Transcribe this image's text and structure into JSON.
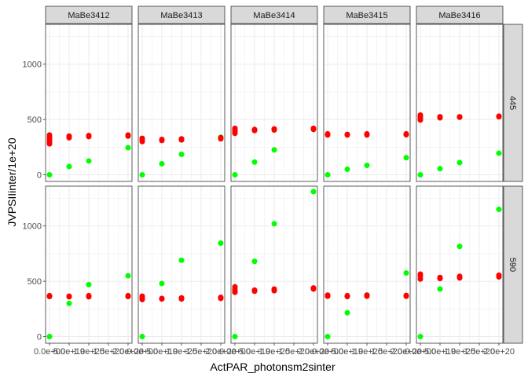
{
  "chart_data": {
    "type": "scatter",
    "layout": "facet_grid",
    "xlabel": "ActPAR_photonsm2sinter",
    "ylabel": "JVPSIIinter/1e+20",
    "col_facets": [
      "MaBe3412",
      "MaBe3413",
      "MaBe3414",
      "MaBe3415",
      "MaBe3416"
    ],
    "row_facets": [
      "445",
      "590"
    ],
    "xlim": [
      -0.1,
      2.1
    ],
    "ylim": [
      -60,
      1360
    ],
    "x_ticks": [
      0,
      0.5,
      1.0,
      1.5,
      2.0
    ],
    "x_tick_labels": [
      "0.0e+00",
      "5.0e+19",
      "1.0e+20",
      "1.5e+20",
      "2.0e+20"
    ],
    "y_ticks": [
      0,
      500,
      1000
    ],
    "y_tick_labels": [
      "0",
      "500",
      "1000"
    ],
    "grid": true,
    "colors": {
      "red": "#ff0000",
      "green": "#00ff00",
      "strip_bg": "#d9d9d9",
      "grid": "#ebebeb",
      "panel_border": "#333333"
    },
    "panels": [
      {
        "col": "MaBe3412",
        "row": "445",
        "red": [
          [
            0.0,
            360
          ],
          [
            0.0,
            340
          ],
          [
            0.0,
            325
          ],
          [
            0.0,
            310
          ],
          [
            0.0,
            295
          ],
          [
            0.0,
            280
          ],
          [
            0.5,
            350
          ],
          [
            0.5,
            335
          ],
          [
            1.0,
            355
          ],
          [
            1.0,
            345
          ],
          [
            2.0,
            360
          ],
          [
            2.0,
            350
          ]
        ],
        "green": [
          [
            0.0,
            0
          ],
          [
            0.5,
            75
          ],
          [
            1.0,
            125
          ],
          [
            2.0,
            245
          ]
        ]
      },
      {
        "col": "MaBe3413",
        "row": "445",
        "red": [
          [
            0.0,
            330
          ],
          [
            0.0,
            315
          ],
          [
            0.0,
            300
          ],
          [
            0.5,
            320
          ],
          [
            0.5,
            310
          ],
          [
            1.0,
            325
          ],
          [
            1.0,
            315
          ],
          [
            2.0,
            335
          ],
          [
            2.0,
            325
          ]
        ],
        "green": [
          [
            0.0,
            0
          ],
          [
            0.5,
            100
          ],
          [
            1.0,
            185
          ],
          [
            2.0,
            340
          ]
        ]
      },
      {
        "col": "MaBe3414",
        "row": "445",
        "red": [
          [
            0.0,
            420
          ],
          [
            0.0,
            405
          ],
          [
            0.0,
            390
          ],
          [
            0.0,
            375
          ],
          [
            0.5,
            410
          ],
          [
            0.5,
            400
          ],
          [
            1.0,
            415
          ],
          [
            1.0,
            405
          ],
          [
            2.0,
            420
          ],
          [
            2.0,
            410
          ]
        ],
        "green": [
          [
            0.0,
            0
          ],
          [
            0.5,
            115
          ],
          [
            1.0,
            225
          ],
          [
            2.0,
            410
          ]
        ]
      },
      {
        "col": "MaBe3415",
        "row": "445",
        "red": [
          [
            0.0,
            370
          ],
          [
            0.0,
            360
          ],
          [
            0.5,
            365
          ],
          [
            0.5,
            360
          ],
          [
            1.0,
            370
          ],
          [
            1.0,
            360
          ],
          [
            2.0,
            370
          ],
          [
            2.0,
            362
          ]
        ],
        "green": [
          [
            0.0,
            0
          ],
          [
            0.5,
            50
          ],
          [
            1.0,
            85
          ],
          [
            2.0,
            155
          ]
        ]
      },
      {
        "col": "MaBe3416",
        "row": "445",
        "red": [
          [
            0.0,
            540
          ],
          [
            0.0,
            525
          ],
          [
            0.0,
            510
          ],
          [
            0.0,
            495
          ],
          [
            0.5,
            525
          ],
          [
            0.5,
            515
          ],
          [
            1.0,
            525
          ],
          [
            1.0,
            520
          ],
          [
            2.0,
            530
          ],
          [
            2.0,
            525
          ]
        ],
        "green": [
          [
            0.0,
            0
          ],
          [
            0.5,
            55
          ],
          [
            1.0,
            110
          ],
          [
            2.0,
            195
          ]
        ]
      },
      {
        "col": "MaBe3412",
        "row": "590",
        "red": [
          [
            0.0,
            370
          ],
          [
            0.0,
            362
          ],
          [
            0.5,
            365
          ],
          [
            0.5,
            360
          ],
          [
            1.0,
            370
          ],
          [
            1.0,
            360
          ],
          [
            2.0,
            370
          ],
          [
            2.0,
            362
          ]
        ],
        "green": [
          [
            0.0,
            0
          ],
          [
            0.5,
            300
          ],
          [
            1.0,
            470
          ],
          [
            2.0,
            550
          ]
        ]
      },
      {
        "col": "MaBe3413",
        "row": "590",
        "red": [
          [
            0.0,
            365
          ],
          [
            0.0,
            350
          ],
          [
            0.0,
            335
          ],
          [
            0.5,
            345
          ],
          [
            0.5,
            340
          ],
          [
            1.0,
            350
          ],
          [
            1.0,
            340
          ],
          [
            2.0,
            355
          ],
          [
            2.0,
            345
          ]
        ],
        "green": [
          [
            0.0,
            0
          ],
          [
            0.5,
            480
          ],
          [
            1.0,
            690
          ],
          [
            2.0,
            845
          ]
        ]
      },
      {
        "col": "MaBe3414",
        "row": "590",
        "red": [
          [
            0.0,
            450
          ],
          [
            0.0,
            430
          ],
          [
            0.0,
            415
          ],
          [
            0.0,
            400
          ],
          [
            0.5,
            420
          ],
          [
            0.5,
            410
          ],
          [
            1.0,
            430
          ],
          [
            1.0,
            415
          ],
          [
            2.0,
            440
          ],
          [
            2.0,
            430
          ]
        ],
        "green": [
          [
            0.0,
            0
          ],
          [
            0.5,
            680
          ],
          [
            1.0,
            1020
          ],
          [
            2.0,
            1310
          ]
        ]
      },
      {
        "col": "MaBe3415",
        "row": "590",
        "red": [
          [
            0.0,
            375
          ],
          [
            0.0,
            365
          ],
          [
            0.5,
            370
          ],
          [
            0.5,
            362
          ],
          [
            1.0,
            375
          ],
          [
            1.0,
            365
          ],
          [
            2.0,
            372
          ],
          [
            2.0,
            365
          ]
        ],
        "green": [
          [
            0.0,
            0
          ],
          [
            0.5,
            215
          ],
          [
            1.0,
            375
          ],
          [
            2.0,
            575
          ]
        ]
      },
      {
        "col": "MaBe3416",
        "row": "590",
        "red": [
          [
            0.0,
            565
          ],
          [
            0.0,
            545
          ],
          [
            0.0,
            520
          ],
          [
            0.5,
            535
          ],
          [
            0.5,
            525
          ],
          [
            1.0,
            545
          ],
          [
            1.0,
            530
          ],
          [
            2.0,
            555
          ],
          [
            2.0,
            540
          ]
        ],
        "green": [
          [
            0.0,
            0
          ],
          [
            0.5,
            430
          ],
          [
            1.0,
            815
          ],
          [
            2.0,
            1150
          ]
        ]
      }
    ]
  }
}
